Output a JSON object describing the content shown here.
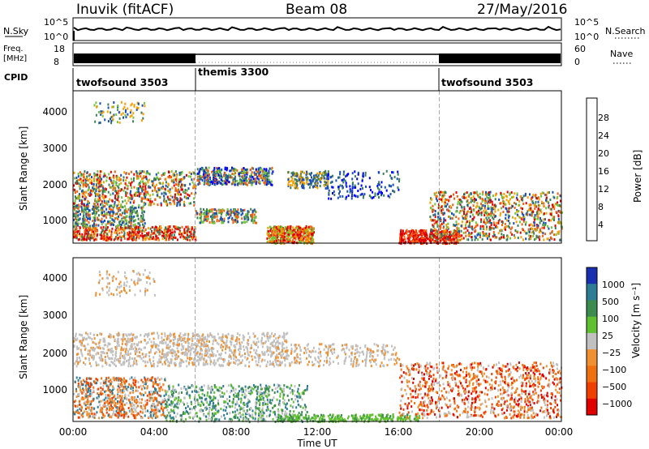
{
  "header": {
    "station": "Inuvik (fitACF)",
    "beam": "Beam 08",
    "date": "27/May/2016"
  },
  "summary": {
    "nsky_label": "N.Sky",
    "nsky_ticks": [
      "10^5",
      "10^0"
    ],
    "nsearch_label": "N.Search",
    "nsearch_ticks": [
      "10^5",
      "10^0"
    ],
    "freq_label_1": "Freq.",
    "freq_label_2": "[MHz]",
    "freq_ticks": [
      "18",
      "8"
    ],
    "nave_label": "Nave",
    "nave_ticks": [
      "60",
      "0"
    ],
    "cpid_label": "CPID",
    "cpid_segments": [
      {
        "name": "twofsound 3503",
        "start_h": 0,
        "end_h": 6
      },
      {
        "name": "themis 3300",
        "start_h": 6,
        "end_h": 18
      },
      {
        "name": "twofsound 3503",
        "start_h": 18,
        "end_h": 24
      }
    ]
  },
  "chart_data": [
    {
      "type": "heatmap",
      "title": "Power",
      "xlabel": "",
      "ylabel": "Slant Range [km]",
      "ylim": [
        180,
        4600
      ],
      "y_ticks": [
        "1000",
        "2000",
        "3000",
        "4000"
      ],
      "colorbar_label": "Power [dB]",
      "colorbar_ticks": [
        "4",
        "8",
        "12",
        "16",
        "20",
        "24",
        "28"
      ],
      "colorbar_colors": [
        "#0000ff",
        "#1a4fb4",
        "#3c7e5a",
        "#72c43a",
        "#f0e000",
        "#f5a000",
        "#f06010",
        "#e00000"
      ]
    },
    {
      "type": "heatmap",
      "title": "Velocity",
      "xlabel": "Time UT",
      "ylabel": "Slant Range [km]",
      "ylim": [
        180,
        4600
      ],
      "y_ticks": [
        "1000",
        "2000",
        "3000",
        "4000"
      ],
      "x_ticks": [
        "00:00",
        "04:00",
        "08:00",
        "12:00",
        "16:00",
        "20:00",
        "00:00"
      ],
      "xlim_hours": [
        0,
        24
      ],
      "colorbar_label": "Velocity [m s⁻¹]",
      "colorbar_ticks": [
        "1000",
        "500",
        "100",
        "25",
        "−25",
        "−100",
        "−500",
        "−1000"
      ],
      "colorbar_colors": [
        "#1830b0",
        "#2d7c96",
        "#3c8c50",
        "#60c030",
        "#c0c0c0",
        "#f09030",
        "#f07010",
        "#f04000",
        "#e00000"
      ]
    }
  ]
}
